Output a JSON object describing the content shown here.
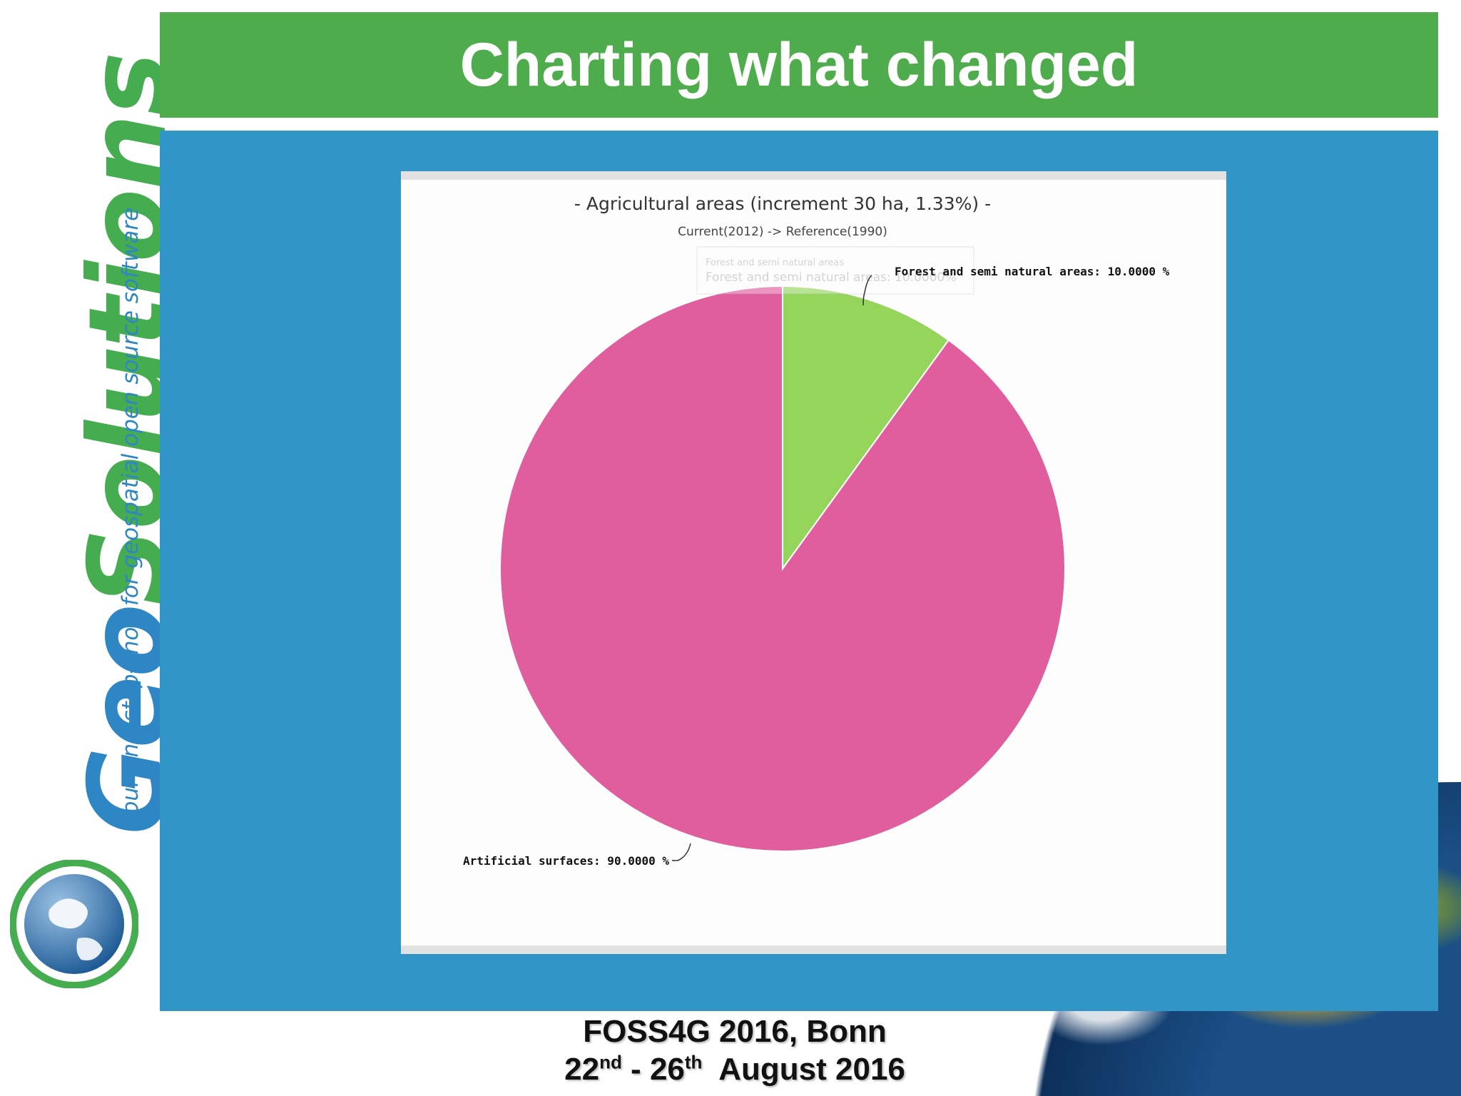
{
  "slide": {
    "title": "Charting what changed",
    "footer_line1": "FOSS4G 2016, Bonn",
    "footer_day_start": "22",
    "footer_day_start_suffix": "nd",
    "footer_sep": " - ",
    "footer_day_end": "26",
    "footer_day_end_suffix": "th",
    "footer_month_year": "  August 2016"
  },
  "logo": {
    "word_geo": "Geo",
    "word_solutions": "Solutions",
    "tagline": "your one-stop-shop for geospatial open source software"
  },
  "colors": {
    "title_bar": "#4fac4c",
    "panel": "#3195c8",
    "slice_forest": "#95d55c",
    "slice_artificial": "#e05e9e"
  },
  "chart_data": {
    "type": "pie",
    "title": "- Agricultural areas (increment 30 ha, 1.33%) -",
    "subtitle": "Current(2012) -> Reference(1990)",
    "slices": [
      {
        "name": "Forest and semi natural areas",
        "value": 10.0,
        "label": "Forest and semi natural areas: 10.0000 %"
      },
      {
        "name": "Artificial surfaces",
        "value": 90.0,
        "label": "Artificial surfaces: 90.0000 %"
      }
    ],
    "tooltip": {
      "title": "Forest and semi natural areas",
      "text": "Forest and semi natural areas: 10.0000%"
    }
  }
}
